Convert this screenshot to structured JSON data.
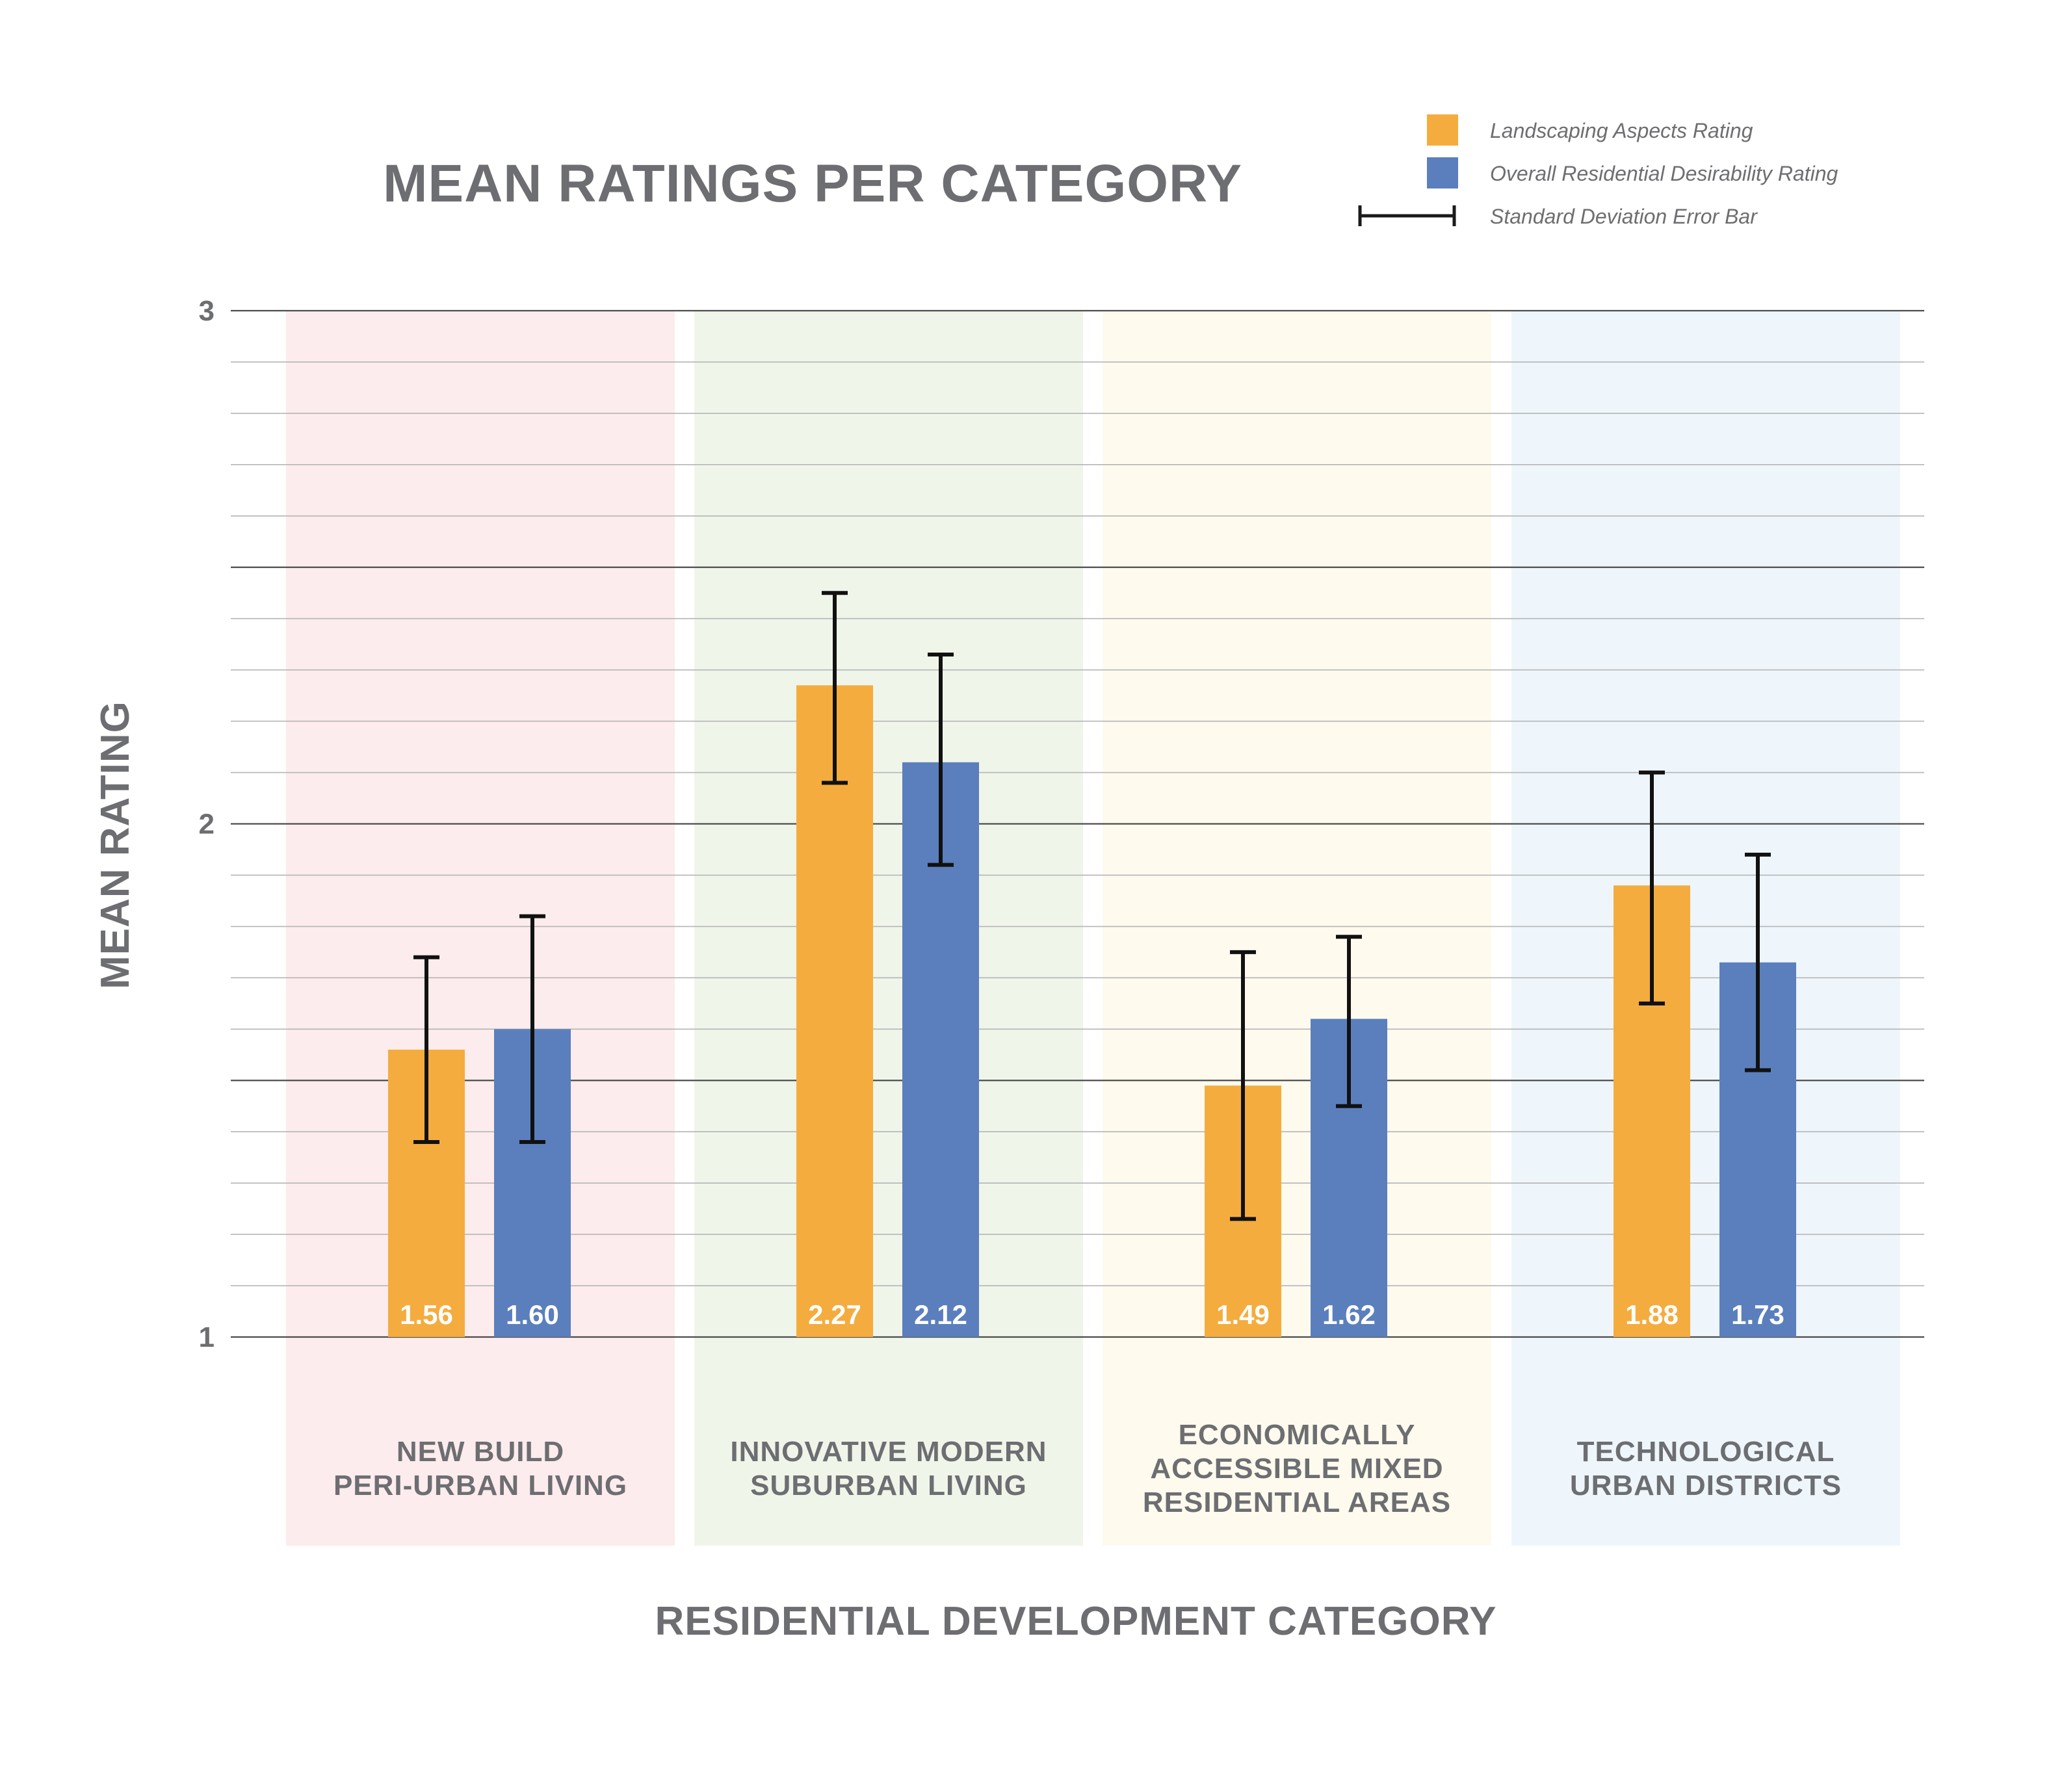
{
  "chart_data": {
    "type": "bar",
    "title": "MEAN RATINGS PER CATEGORY",
    "xlabel": "RESIDENTIAL DEVELOPMENT CATEGORY",
    "ylabel": "MEAN RATING",
    "ylim": [
      1,
      3
    ],
    "yticks": [
      "1",
      "2",
      "3"
    ],
    "grid": true,
    "legend_position": "top-right",
    "categories": [
      {
        "lines": [
          "NEW BUILD",
          "PERI-URBAN LIVING"
        ],
        "band_color": "#fdeced"
      },
      {
        "lines": [
          "INNOVATIVE MODERN",
          "SUBURBAN LIVING"
        ],
        "band_color": "#f0f5ea"
      },
      {
        "lines": [
          "ECONOMICALLY",
          "ACCESSIBLE MIXED",
          "RESIDENTIAL AREAS"
        ],
        "band_color": "#fefaee"
      },
      {
        "lines": [
          "TECHNOLOGICAL",
          "URBAN DISTRICTS"
        ],
        "band_color": "#eef6fc"
      }
    ],
    "series": [
      {
        "name": "Landscaping Aspects Rating",
        "color": "#f5ac3e",
        "values": [
          1.56,
          2.27,
          1.49,
          1.88
        ],
        "labels": [
          "1.56",
          "2.27",
          "1.49",
          "1.88"
        ],
        "error_low": [
          1.38,
          2.08,
          1.23,
          1.65
        ],
        "error_high": [
          1.74,
          2.45,
          1.75,
          2.1
        ]
      },
      {
        "name": "Overall Residential Desirability Rating",
        "color": "#5b7fbd",
        "values": [
          1.6,
          2.12,
          1.62,
          1.73
        ],
        "labels": [
          "1.60",
          "2.12",
          "1.62",
          "1.73"
        ],
        "error_low": [
          1.38,
          1.92,
          1.45,
          1.52
        ],
        "error_high": [
          1.82,
          2.33,
          1.78,
          1.94
        ]
      }
    ],
    "legend": {
      "error_bar_label": "Standard Deviation Error Bar"
    }
  }
}
